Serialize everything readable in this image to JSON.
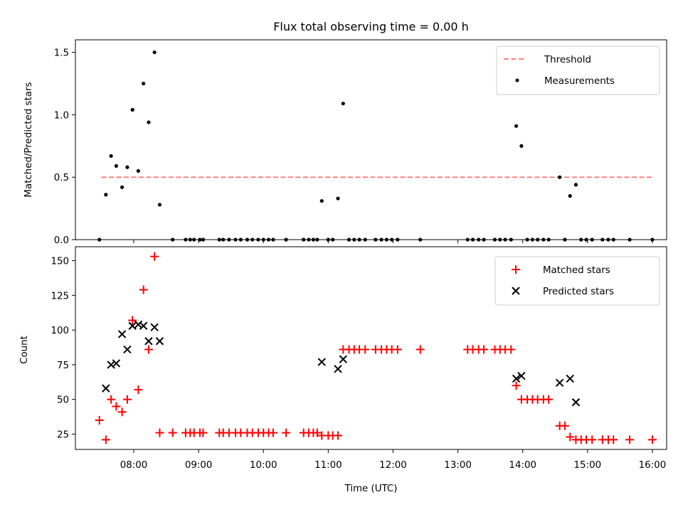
{
  "chart_data": [
    {
      "type": "scatter",
      "title": "Flux total observing time = 0.00 h",
      "ylabel": "Matched/Predicted stars",
      "xlabel": "",
      "x_unit": "hours (UTC, decimal)",
      "xlim": [
        7.1,
        16.22
      ],
      "ylim": [
        0,
        1.6
      ],
      "yticks": [
        0,
        0.5,
        1.0,
        1.5
      ],
      "ytick_labels": [
        "0.0",
        "0.5",
        "1.0",
        "1.5"
      ],
      "legend": {
        "position": "top-right",
        "entries": [
          "Threshold",
          "Measurements"
        ]
      },
      "threshold": {
        "name": "Threshold",
        "value": 0.5,
        "x_range": [
          7.5,
          16.0
        ],
        "color": "#ff7f7f",
        "style": "dashed"
      },
      "series": [
        {
          "name": "Measurements",
          "color": "#000000",
          "marker": "dot",
          "points": [
            [
              7.47,
              0.0
            ],
            [
              7.57,
              0.36
            ],
            [
              7.65,
              0.67
            ],
            [
              7.73,
              0.59
            ],
            [
              7.82,
              0.42
            ],
            [
              7.9,
              0.58
            ],
            [
              7.98,
              1.04
            ],
            [
              8.07,
              0.55
            ],
            [
              8.15,
              1.25
            ],
            [
              8.23,
              0.94
            ],
            [
              8.32,
              1.5
            ],
            [
              8.4,
              0.28
            ],
            [
              8.6,
              0.0
            ],
            [
              8.8,
              0.0
            ],
            [
              8.87,
              0.0
            ],
            [
              8.93,
              0.0
            ],
            [
              9.02,
              0.0
            ],
            [
              9.07,
              0.0
            ],
            [
              9.32,
              0.0
            ],
            [
              9.38,
              0.0
            ],
            [
              9.47,
              0.0
            ],
            [
              9.57,
              0.0
            ],
            [
              9.65,
              0.0
            ],
            [
              9.75,
              0.0
            ],
            [
              9.83,
              0.0
            ],
            [
              9.92,
              0.0
            ],
            [
              10.0,
              0.0
            ],
            [
              10.08,
              0.0
            ],
            [
              10.15,
              0.0
            ],
            [
              10.35,
              0.0
            ],
            [
              10.62,
              0.0
            ],
            [
              10.7,
              0.0
            ],
            [
              10.77,
              0.0
            ],
            [
              10.83,
              0.0
            ],
            [
              10.9,
              0.31
            ],
            [
              11.0,
              0.0
            ],
            [
              11.07,
              0.0
            ],
            [
              11.15,
              0.33
            ],
            [
              11.23,
              1.09
            ],
            [
              11.32,
              0.0
            ],
            [
              11.4,
              0.0
            ],
            [
              11.48,
              0.0
            ],
            [
              11.57,
              0.0
            ],
            [
              11.73,
              0.0
            ],
            [
              11.82,
              0.0
            ],
            [
              11.9,
              0.0
            ],
            [
              11.98,
              0.0
            ],
            [
              12.07,
              0.0
            ],
            [
              12.42,
              0.0
            ],
            [
              13.15,
              0.0
            ],
            [
              13.23,
              0.0
            ],
            [
              13.32,
              0.0
            ],
            [
              13.4,
              0.0
            ],
            [
              13.57,
              0.0
            ],
            [
              13.65,
              0.0
            ],
            [
              13.73,
              0.0
            ],
            [
              13.82,
              0.0
            ],
            [
              13.9,
              0.91
            ],
            [
              13.98,
              0.75
            ],
            [
              14.07,
              0.0
            ],
            [
              14.15,
              0.0
            ],
            [
              14.23,
              0.0
            ],
            [
              14.32,
              0.0
            ],
            [
              14.4,
              0.0
            ],
            [
              14.57,
              0.5
            ],
            [
              14.65,
              0.0
            ],
            [
              14.73,
              0.35
            ],
            [
              14.82,
              0.44
            ],
            [
              14.9,
              0.0
            ],
            [
              14.98,
              0.0
            ],
            [
              15.07,
              0.0
            ],
            [
              15.23,
              0.0
            ],
            [
              15.32,
              0.0
            ],
            [
              15.4,
              0.0
            ],
            [
              15.65,
              0.0
            ],
            [
              16.0,
              0.0
            ]
          ]
        }
      ]
    },
    {
      "type": "scatter",
      "title": "",
      "ylabel": "Count",
      "xlabel": "Time (UTC)",
      "x_unit": "hours (UTC, decimal)",
      "xlim": [
        7.1,
        16.22
      ],
      "ylim": [
        14,
        160
      ],
      "xticks": [
        8,
        9,
        10,
        11,
        12,
        13,
        14,
        15,
        16
      ],
      "xtick_labels": [
        "08:00",
        "09:00",
        "10:00",
        "11:00",
        "12:00",
        "13:00",
        "14:00",
        "15:00",
        "16:00"
      ],
      "yticks": [
        25,
        50,
        75,
        100,
        125,
        150
      ],
      "ytick_labels": [
        "25",
        "50",
        "75",
        "100",
        "125",
        "150"
      ],
      "legend": {
        "position": "top-right",
        "entries": [
          "Matched stars",
          "Predicted stars"
        ]
      },
      "series": [
        {
          "name": "Matched stars",
          "color": "#ff0000",
          "marker": "plus",
          "points": [
            [
              7.47,
              35
            ],
            [
              7.57,
              21
            ],
            [
              7.65,
              50
            ],
            [
              7.73,
              45
            ],
            [
              7.82,
              41
            ],
            [
              7.9,
              50
            ],
            [
              7.98,
              107
            ],
            [
              8.07,
              57
            ],
            [
              8.15,
              129
            ],
            [
              8.23,
              86
            ],
            [
              8.32,
              153
            ],
            [
              8.4,
              26
            ],
            [
              8.6,
              26
            ],
            [
              8.8,
              26
            ],
            [
              8.87,
              26
            ],
            [
              8.93,
              26
            ],
            [
              9.02,
              26
            ],
            [
              9.07,
              26
            ],
            [
              9.32,
              26
            ],
            [
              9.38,
              26
            ],
            [
              9.47,
              26
            ],
            [
              9.57,
              26
            ],
            [
              9.65,
              26
            ],
            [
              9.75,
              26
            ],
            [
              9.83,
              26
            ],
            [
              9.92,
              26
            ],
            [
              10.0,
              26
            ],
            [
              10.08,
              26
            ],
            [
              10.15,
              26
            ],
            [
              10.35,
              26
            ],
            [
              10.62,
              26
            ],
            [
              10.7,
              26
            ],
            [
              10.77,
              26
            ],
            [
              10.83,
              26
            ],
            [
              10.9,
              24
            ],
            [
              11.0,
              24
            ],
            [
              11.07,
              24
            ],
            [
              11.15,
              24
            ],
            [
              11.23,
              86
            ],
            [
              11.32,
              86
            ],
            [
              11.4,
              86
            ],
            [
              11.48,
              86
            ],
            [
              11.57,
              86
            ],
            [
              11.73,
              86
            ],
            [
              11.82,
              86
            ],
            [
              11.9,
              86
            ],
            [
              11.98,
              86
            ],
            [
              12.07,
              86
            ],
            [
              12.42,
              86
            ],
            [
              13.15,
              86
            ],
            [
              13.23,
              86
            ],
            [
              13.32,
              86
            ],
            [
              13.4,
              86
            ],
            [
              13.57,
              86
            ],
            [
              13.65,
              86
            ],
            [
              13.73,
              86
            ],
            [
              13.82,
              86
            ],
            [
              13.9,
              60
            ],
            [
              13.98,
              50
            ],
            [
              14.07,
              50
            ],
            [
              14.15,
              50
            ],
            [
              14.23,
              50
            ],
            [
              14.32,
              50
            ],
            [
              14.4,
              50
            ],
            [
              14.57,
              31
            ],
            [
              14.65,
              31
            ],
            [
              14.73,
              23
            ],
            [
              14.82,
              21
            ],
            [
              14.9,
              21
            ],
            [
              14.98,
              21
            ],
            [
              15.07,
              21
            ],
            [
              15.23,
              21
            ],
            [
              15.32,
              21
            ],
            [
              15.4,
              21
            ],
            [
              15.65,
              21
            ],
            [
              16.0,
              21
            ]
          ]
        },
        {
          "name": "Predicted stars",
          "color": "#000000",
          "marker": "x",
          "points": [
            [
              7.57,
              58
            ],
            [
              7.65,
              75
            ],
            [
              7.73,
              76
            ],
            [
              7.82,
              97
            ],
            [
              7.9,
              86
            ],
            [
              7.98,
              103
            ],
            [
              8.07,
              104
            ],
            [
              8.15,
              103
            ],
            [
              8.23,
              92
            ],
            [
              8.32,
              102
            ],
            [
              8.4,
              92
            ],
            [
              10.9,
              77
            ],
            [
              11.15,
              72
            ],
            [
              11.23,
              79
            ],
            [
              13.9,
              65
            ],
            [
              13.98,
              67
            ],
            [
              14.57,
              62
            ],
            [
              14.73,
              65
            ],
            [
              14.82,
              48
            ]
          ]
        }
      ]
    }
  ]
}
